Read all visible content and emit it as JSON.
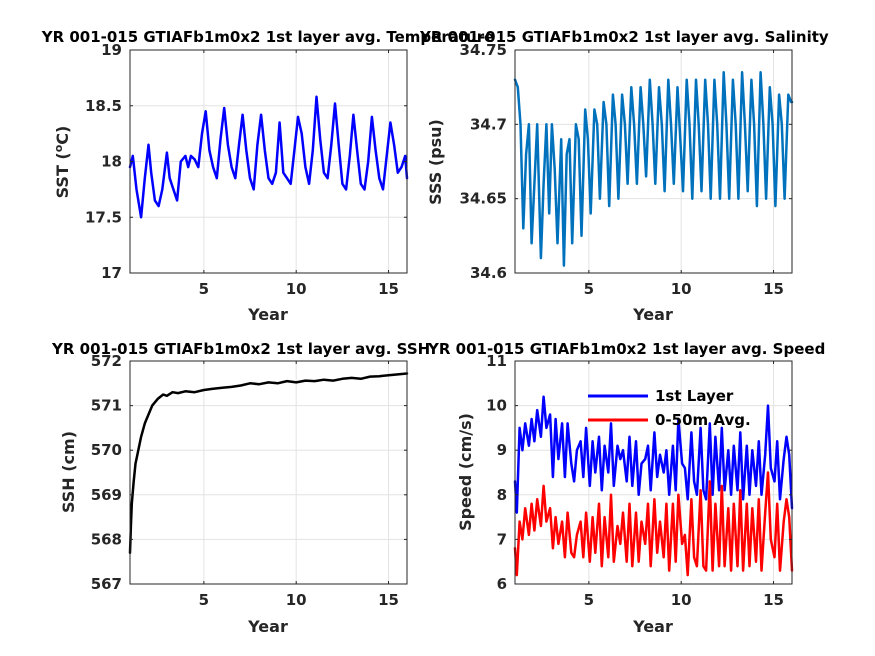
{
  "chart_data": [
    {
      "type": "line",
      "title": "YR 001-015 GTIAFb1m0x2 1st layer avg. Temperature",
      "xlabel": "Year",
      "ylabel": "SST (",
      "ylabel_sup": "o",
      "ylabel_tail": "C)",
      "xlim": [
        1,
        16
      ],
      "ylim": [
        17,
        19
      ],
      "xticks": [
        5,
        10,
        15
      ],
      "xtick_labels": [
        "5",
        "10",
        "15"
      ],
      "yticks": [
        17,
        17.5,
        18,
        18.5,
        19
      ],
      "ytick_labels": [
        "17",
        "17.5",
        "18",
        "18.5",
        "19"
      ],
      "grid": true,
      "series": [
        {
          "color": "#0000ff",
          "x": [
            1.0,
            1.15,
            1.35,
            1.6,
            1.8,
            2.0,
            2.15,
            2.35,
            2.55,
            2.75,
            3.0,
            3.15,
            3.35,
            3.55,
            3.75,
            4.0,
            4.15,
            4.3,
            4.5,
            4.7,
            4.9,
            5.1,
            5.3,
            5.5,
            5.7,
            5.9,
            6.1,
            6.3,
            6.5,
            6.7,
            6.9,
            7.1,
            7.3,
            7.5,
            7.7,
            7.9,
            8.1,
            8.3,
            8.5,
            8.7,
            8.9,
            9.1,
            9.3,
            9.5,
            9.7,
            9.9,
            10.1,
            10.3,
            10.5,
            10.7,
            10.9,
            11.1,
            11.3,
            11.5,
            11.7,
            11.9,
            12.1,
            12.3,
            12.5,
            12.7,
            12.9,
            13.1,
            13.3,
            13.5,
            13.7,
            13.9,
            14.1,
            14.3,
            14.5,
            14.7,
            14.9,
            15.1,
            15.3,
            15.5,
            15.7,
            15.9,
            16.0
          ],
          "y": [
            17.95,
            18.05,
            17.75,
            17.5,
            17.85,
            18.15,
            17.9,
            17.65,
            17.6,
            17.75,
            18.08,
            17.85,
            17.75,
            17.65,
            18.0,
            18.05,
            17.95,
            18.05,
            18.02,
            17.95,
            18.25,
            18.45,
            18.1,
            17.95,
            17.85,
            18.2,
            18.48,
            18.15,
            17.95,
            17.85,
            18.15,
            18.42,
            18.1,
            17.85,
            17.75,
            18.15,
            18.42,
            18.1,
            17.85,
            17.8,
            17.9,
            18.35,
            17.9,
            17.85,
            17.8,
            18.1,
            18.4,
            18.25,
            17.95,
            17.8,
            18.1,
            18.58,
            18.2,
            17.9,
            17.85,
            18.15,
            18.52,
            18.15,
            17.8,
            17.75,
            18.05,
            18.42,
            18.1,
            17.8,
            17.75,
            18.0,
            18.4,
            18.1,
            17.85,
            17.75,
            18.05,
            18.35,
            18.15,
            17.9,
            17.95,
            18.05,
            17.85
          ]
        }
      ]
    },
    {
      "type": "line",
      "title": "YR 001-015 GTIAFb1m0x2 1st layer avg. Salinity",
      "xlabel": "Year",
      "ylabel": "SSS (psu)",
      "xlim": [
        1,
        16
      ],
      "ylim": [
        34.6,
        34.75
      ],
      "xticks": [
        5,
        10,
        15
      ],
      "xtick_labels": [
        "5",
        "10",
        "15"
      ],
      "yticks": [
        34.6,
        34.65,
        34.7,
        34.75
      ],
      "ytick_labels": [
        "34.6",
        "34.65",
        "34.7",
        "34.75"
      ],
      "grid": true,
      "series": [
        {
          "color": "#0072bd",
          "x": [
            1.0,
            1.15,
            1.3,
            1.45,
            1.6,
            1.75,
            1.9,
            2.05,
            2.2,
            2.4,
            2.55,
            2.7,
            2.85,
            3.0,
            3.15,
            3.3,
            3.5,
            3.65,
            3.8,
            3.95,
            4.1,
            4.3,
            4.45,
            4.6,
            4.8,
            4.95,
            5.1,
            5.3,
            5.45,
            5.6,
            5.8,
            5.95,
            6.1,
            6.3,
            6.45,
            6.6,
            6.8,
            6.95,
            7.1,
            7.3,
            7.45,
            7.6,
            7.8,
            7.95,
            8.1,
            8.3,
            8.45,
            8.6,
            8.8,
            8.95,
            9.1,
            9.3,
            9.45,
            9.6,
            9.8,
            9.95,
            10.1,
            10.3,
            10.45,
            10.6,
            10.8,
            10.95,
            11.1,
            11.3,
            11.45,
            11.6,
            11.8,
            11.95,
            12.1,
            12.3,
            12.45,
            12.6,
            12.8,
            12.95,
            13.1,
            13.3,
            13.45,
            13.6,
            13.8,
            13.95,
            14.1,
            14.3,
            14.45,
            14.6,
            14.8,
            14.95,
            15.1,
            15.3,
            15.45,
            15.6,
            15.8,
            15.95,
            16.0
          ],
          "y": [
            34.73,
            34.725,
            34.7,
            34.63,
            34.68,
            34.7,
            34.62,
            34.66,
            34.7,
            34.61,
            34.66,
            34.7,
            34.64,
            34.7,
            34.67,
            34.62,
            34.69,
            34.605,
            34.68,
            34.69,
            34.62,
            34.7,
            34.69,
            34.625,
            34.71,
            34.69,
            34.64,
            34.71,
            34.7,
            34.65,
            34.715,
            34.7,
            34.645,
            34.72,
            34.7,
            34.65,
            34.72,
            34.7,
            34.66,
            34.725,
            34.7,
            34.66,
            34.725,
            34.7,
            34.665,
            34.73,
            34.7,
            34.66,
            34.725,
            34.7,
            34.655,
            34.73,
            34.7,
            34.66,
            34.725,
            34.69,
            34.655,
            34.73,
            34.7,
            34.65,
            34.73,
            34.7,
            34.655,
            34.73,
            34.7,
            34.65,
            34.73,
            34.7,
            34.65,
            34.735,
            34.7,
            34.65,
            34.73,
            34.7,
            34.65,
            34.735,
            34.7,
            34.655,
            34.73,
            34.7,
            34.645,
            34.735,
            34.7,
            34.65,
            34.725,
            34.7,
            34.645,
            34.72,
            34.7,
            34.65,
            34.72,
            34.715,
            34.715
          ]
        }
      ]
    },
    {
      "type": "line",
      "title": "YR 001-015 GTIAFb1m0x2 1st layer avg. SSH",
      "xlabel": "Year",
      "ylabel": "SSH (cm)",
      "xlim": [
        1,
        16
      ],
      "ylim": [
        567,
        572
      ],
      "xticks": [
        5,
        10,
        15
      ],
      "xtick_labels": [
        "5",
        "10",
        "15"
      ],
      "yticks": [
        567,
        568,
        569,
        570,
        571,
        572
      ],
      "ytick_labels": [
        "567",
        "568",
        "569",
        "570",
        "571",
        "572"
      ],
      "grid": true,
      "series": [
        {
          "color": "#000000",
          "x": [
            1.0,
            1.05,
            1.1,
            1.2,
            1.3,
            1.45,
            1.6,
            1.8,
            2.0,
            2.2,
            2.5,
            2.8,
            3.0,
            3.3,
            3.6,
            4.0,
            4.5,
            5.0,
            5.5,
            6.0,
            6.5,
            7.0,
            7.5,
            8.0,
            8.5,
            9.0,
            9.5,
            10.0,
            10.5,
            11.0,
            11.5,
            12.0,
            12.5,
            13.0,
            13.5,
            14.0,
            14.5,
            15.0,
            15.5,
            16.0
          ],
          "y": [
            567.7,
            568.3,
            568.8,
            569.3,
            569.7,
            570.0,
            570.3,
            570.6,
            570.8,
            571.0,
            571.15,
            571.25,
            571.22,
            571.3,
            571.28,
            571.32,
            571.3,
            571.35,
            571.38,
            571.4,
            571.42,
            571.45,
            571.5,
            571.48,
            571.52,
            571.5,
            571.55,
            571.52,
            571.56,
            571.55,
            571.58,
            571.56,
            571.6,
            571.62,
            571.6,
            571.65,
            571.66,
            571.68,
            571.7,
            571.72
          ]
        }
      ]
    },
    {
      "type": "line",
      "title": "YR 001-015 GTIAFb1m0x2 1st layer avg. Speed",
      "xlabel": "Year",
      "ylabel": "Speed (cm/s)",
      "xlim": [
        1,
        16
      ],
      "ylim": [
        6,
        11
      ],
      "xticks": [
        5,
        10,
        15
      ],
      "xtick_labels": [
        "5",
        "10",
        "15"
      ],
      "yticks": [
        6,
        7,
        8,
        9,
        10,
        11
      ],
      "ytick_labels": [
        "6",
        "7",
        "8",
        "9",
        "10",
        "11"
      ],
      "grid": true,
      "legend": "top-center",
      "series": [
        {
          "name": "1st Layer",
          "color": "#0000ff",
          "x": [
            1.0,
            1.1,
            1.25,
            1.4,
            1.55,
            1.75,
            1.9,
            2.05,
            2.2,
            2.4,
            2.55,
            2.7,
            2.9,
            3.05,
            3.2,
            3.35,
            3.55,
            3.7,
            3.85,
            4.05,
            4.2,
            4.35,
            4.55,
            4.7,
            4.85,
            5.05,
            5.2,
            5.35,
            5.55,
            5.7,
            5.85,
            6.05,
            6.2,
            6.35,
            6.55,
            6.7,
            6.85,
            7.05,
            7.2,
            7.35,
            7.55,
            7.7,
            7.85,
            8.05,
            8.2,
            8.35,
            8.55,
            8.7,
            8.85,
            9.05,
            9.2,
            9.35,
            9.55,
            9.7,
            9.85,
            10.05,
            10.2,
            10.35,
            10.55,
            10.7,
            10.85,
            11.05,
            11.2,
            11.35,
            11.55,
            11.7,
            11.85,
            12.05,
            12.2,
            12.35,
            12.55,
            12.7,
            12.85,
            13.05,
            13.2,
            13.35,
            13.55,
            13.7,
            13.85,
            14.05,
            14.2,
            14.35,
            14.55,
            14.7,
            14.85,
            15.05,
            15.2,
            15.35,
            15.55,
            15.7,
            15.85,
            16.0
          ],
          "y": [
            8.3,
            7.6,
            9.5,
            9.0,
            9.6,
            9.1,
            9.7,
            9.2,
            9.9,
            9.3,
            10.2,
            9.5,
            9.8,
            8.4,
            9.7,
            8.8,
            9.6,
            8.4,
            9.6,
            8.7,
            8.3,
            9.0,
            9.2,
            8.4,
            9.5,
            8.2,
            9.2,
            8.5,
            9.3,
            8.1,
            9.1,
            8.5,
            9.6,
            8.2,
            9.1,
            8.8,
            9.0,
            8.3,
            9.3,
            8.2,
            9.2,
            8.0,
            8.7,
            8.8,
            9.1,
            8.1,
            9.4,
            8.4,
            8.9,
            8.5,
            9.0,
            8.0,
            9.1,
            8.1,
            9.7,
            8.7,
            8.6,
            7.9,
            9.4,
            8.3,
            8.0,
            9.5,
            8.1,
            7.9,
            9.6,
            8.0,
            9.3,
            8.1,
            9.5,
            8.1,
            9.0,
            8.0,
            9.1,
            8.1,
            9.4,
            7.9,
            9.1,
            8.0,
            9.0,
            8.2,
            9.2,
            8.0,
            8.9,
            10.0,
            8.6,
            8.3,
            9.2,
            7.9,
            8.8,
            9.3,
            8.9,
            7.7
          ]
        },
        {
          "name": "0-50m Avg.",
          "color": "#ff0000",
          "x": [
            1.0,
            1.1,
            1.25,
            1.4,
            1.55,
            1.75,
            1.9,
            2.05,
            2.2,
            2.4,
            2.55,
            2.7,
            2.9,
            3.05,
            3.2,
            3.35,
            3.55,
            3.7,
            3.85,
            4.05,
            4.2,
            4.35,
            4.55,
            4.7,
            4.85,
            5.05,
            5.2,
            5.35,
            5.55,
            5.7,
            5.85,
            6.05,
            6.2,
            6.35,
            6.55,
            6.7,
            6.85,
            7.05,
            7.2,
            7.35,
            7.55,
            7.7,
            7.85,
            8.05,
            8.2,
            8.35,
            8.55,
            8.7,
            8.85,
            9.05,
            9.2,
            9.35,
            9.55,
            9.7,
            9.85,
            10.05,
            10.2,
            10.35,
            10.55,
            10.7,
            10.85,
            11.05,
            11.2,
            11.35,
            11.55,
            11.7,
            11.85,
            12.05,
            12.2,
            12.35,
            12.55,
            12.7,
            12.85,
            13.05,
            13.2,
            13.35,
            13.55,
            13.7,
            13.85,
            14.05,
            14.2,
            14.35,
            14.55,
            14.7,
            14.85,
            15.05,
            15.2,
            15.35,
            15.55,
            15.7,
            15.85,
            16.0
          ],
          "y": [
            6.8,
            6.2,
            7.4,
            7.0,
            7.7,
            7.1,
            7.8,
            7.2,
            7.9,
            7.3,
            8.2,
            7.4,
            7.7,
            6.8,
            7.5,
            6.9,
            7.4,
            6.6,
            7.6,
            6.7,
            6.6,
            7.1,
            7.4,
            6.6,
            7.6,
            6.5,
            7.5,
            6.7,
            7.8,
            6.4,
            7.5,
            6.6,
            8.0,
            6.5,
            7.3,
            6.9,
            7.6,
            6.5,
            7.8,
            6.4,
            7.6,
            6.5,
            7.4,
            6.9,
            7.8,
            6.4,
            7.9,
            6.7,
            7.4,
            6.6,
            7.8,
            6.3,
            7.8,
            6.5,
            8.0,
            6.9,
            7.1,
            6.2,
            7.9,
            6.6,
            6.4,
            8.1,
            6.4,
            6.3,
            8.3,
            6.3,
            7.8,
            6.4,
            8.2,
            6.4,
            7.7,
            6.3,
            7.8,
            6.4,
            8.1,
            6.3,
            7.8,
            6.4,
            7.7,
            6.5,
            7.9,
            6.3,
            7.6,
            8.5,
            7.0,
            6.6,
            7.8,
            6.3,
            7.4,
            7.9,
            7.5,
            6.3
          ]
        }
      ]
    }
  ]
}
